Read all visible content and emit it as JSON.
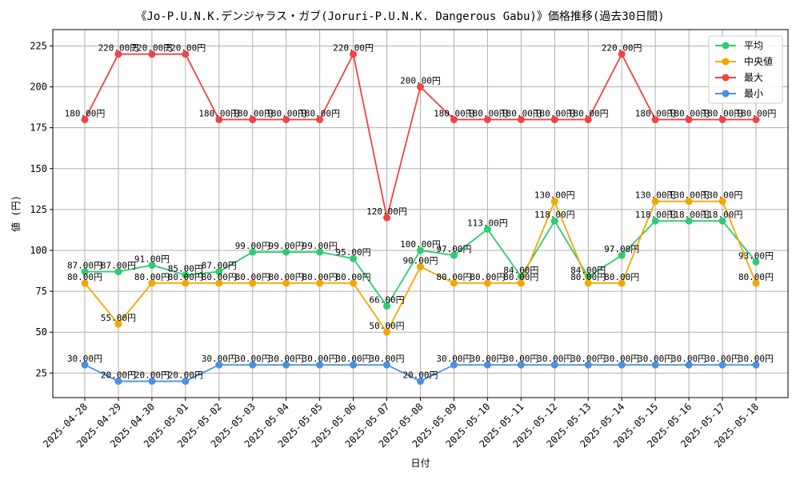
{
  "chart_data": {
    "type": "line",
    "title": "《Jo-P.U.N.K.デンジャラス・ガブ(Joruri-P.U.N.K. Dangerous Gabu)》価格推移(過去30日間)",
    "xlabel": "日付",
    "ylabel": "値 (円)",
    "ylim": [
      10,
      235
    ],
    "yticks": [
      25,
      50,
      75,
      100,
      125,
      150,
      175,
      200,
      225
    ],
    "grid": true,
    "legend_position": "top-right",
    "value_suffix": "円",
    "categories": [
      "2025-04-28",
      "2025-04-29",
      "2025-04-30",
      "2025-05-01",
      "2025-05-02",
      "2025-05-03",
      "2025-05-04",
      "2025-05-05",
      "2025-05-06",
      "2025-05-07",
      "2025-05-08",
      "2025-05-09",
      "2025-05-10",
      "2025-05-11",
      "2025-05-12",
      "2025-05-13",
      "2025-05-14",
      "2025-05-15",
      "2025-05-16",
      "2025-05-17",
      "2025-05-18"
    ],
    "series": [
      {
        "name": "平均",
        "color": "#2ecc71",
        "values": [
          87,
          87,
          91,
          85,
          87,
          99,
          99,
          99,
          95,
          66,
          100,
          97,
          113,
          84,
          118,
          84,
          97,
          118,
          118,
          118,
          93
        ]
      },
      {
        "name": "中央値",
        "color": "#f5a500",
        "values": [
          80,
          55,
          80,
          80,
          80,
          80,
          80,
          80,
          80,
          50,
          90,
          80,
          80,
          80,
          130,
          80,
          80,
          130,
          130,
          130,
          80
        ]
      },
      {
        "name": "最大",
        "color": "#ee4444",
        "values": [
          180,
          220,
          220,
          220,
          180,
          180,
          180,
          180,
          220,
          120,
          200,
          180,
          180,
          180,
          180,
          180,
          220,
          180,
          180,
          180,
          180
        ]
      },
      {
        "name": "最小",
        "color": "#4a90e2",
        "values": [
          30,
          20,
          20,
          20,
          30,
          30,
          30,
          30,
          30,
          30,
          20,
          30,
          30,
          30,
          30,
          30,
          30,
          30,
          30,
          30,
          30
        ]
      }
    ]
  }
}
